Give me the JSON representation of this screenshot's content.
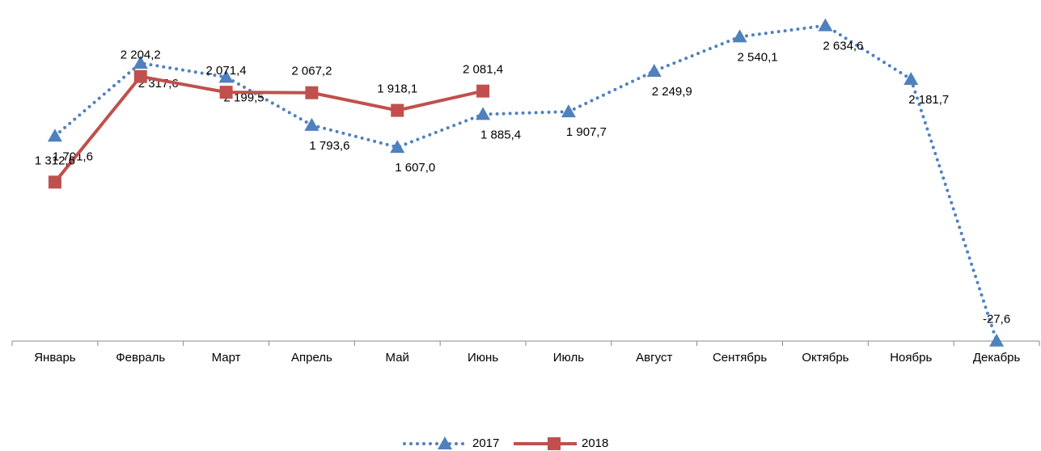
{
  "chart_data": {
    "type": "line",
    "categories": [
      "Январь",
      "Февраль",
      "Март",
      "Апрель",
      "Май",
      "Июнь",
      "Июль",
      "Август",
      "Сентябрь",
      "Октябрь",
      "Ноябрь",
      "Декабрь"
    ],
    "series": [
      {
        "name": "2017",
        "color": "#4f81bd",
        "line_style": "dotted",
        "marker": "triangle",
        "values": [
          1701.6,
          2317.6,
          2199.5,
          1793.6,
          1607.0,
          1885.4,
          1907.7,
          2249.9,
          2540.1,
          2634.6,
          2181.7,
          -27.6
        ],
        "value_labels": [
          "1 701,6",
          "2 317,6",
          "2 199,5",
          "1 793,6",
          "1 607,0",
          "1 885,4",
          "1 907,7",
          "2 249,9",
          "2 540,1",
          "2 634,6",
          "2 181,7",
          "-27,6"
        ]
      },
      {
        "name": "2018",
        "color": "#c0504d",
        "line_style": "solid",
        "marker": "square",
        "values": [
          1312.6,
          2204.2,
          2071.4,
          2067.2,
          1918.1,
          2081.4,
          null,
          null,
          null,
          null,
          null,
          null
        ],
        "value_labels": [
          "1 312,6",
          "2 204,2",
          "2 071,4",
          "2 067,2",
          "1 918,1",
          "2 081,4",
          null,
          null,
          null,
          null,
          null,
          null
        ]
      }
    ],
    "ylim": [
      -50,
      2700
    ],
    "grid": false,
    "legend": "bottom"
  }
}
